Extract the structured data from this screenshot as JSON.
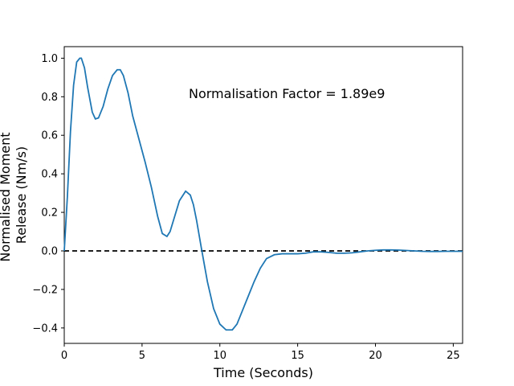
{
  "chart_data": {
    "type": "line",
    "xlabel": "Time (Seconds)",
    "ylabel_lines": [
      "Normalised Moment",
      "Release (Nm/s)"
    ],
    "annotation": "Normalisation Factor = 1.89e9",
    "xlim": [
      0,
      25.6
    ],
    "ylim": [
      -0.48,
      1.06
    ],
    "xticks": [
      0,
      5,
      10,
      15,
      20,
      25
    ],
    "yticks": [
      -0.4,
      -0.2,
      0.0,
      0.2,
      0.4,
      0.6,
      0.8,
      1.0
    ],
    "xtick_labels": [
      "0",
      "5",
      "10",
      "15",
      "20",
      "25"
    ],
    "ytick_labels": [
      "−0.4",
      "−0.2",
      "0.0",
      "0.2",
      "0.4",
      "0.6",
      "0.8",
      "1.0"
    ],
    "grid": false,
    "reference_line": {
      "y": 0.0,
      "style": "dashed",
      "color": "#000000"
    },
    "series": [
      {
        "color": "#1f77b4",
        "x": [
          0,
          0.2,
          0.4,
          0.6,
          0.8,
          1.0,
          1.1,
          1.3,
          1.5,
          1.8,
          2.0,
          2.2,
          2.5,
          2.8,
          3.1,
          3.4,
          3.6,
          3.8,
          4.1,
          4.4,
          4.8,
          5.2,
          5.6,
          6.0,
          6.3,
          6.6,
          6.8,
          7.1,
          7.4,
          7.8,
          8.1,
          8.3,
          8.5,
          8.8,
          9.2,
          9.6,
          10.0,
          10.4,
          10.8,
          11.1,
          11.4,
          11.8,
          12.2,
          12.6,
          13.0,
          13.5,
          14.0,
          14.5,
          15.0,
          15.5,
          16.0,
          16.5,
          17.0,
          17.5,
          18.0,
          18.5,
          19.0,
          19.5,
          20.0,
          20.5,
          21.0,
          21.5,
          22.0,
          22.5,
          23.0,
          23.5,
          24.0,
          24.5,
          25.0,
          25.6
        ],
        "y": [
          0.0,
          0.28,
          0.62,
          0.86,
          0.98,
          1.0,
          1.0,
          0.95,
          0.85,
          0.72,
          0.685,
          0.69,
          0.75,
          0.84,
          0.91,
          0.94,
          0.94,
          0.91,
          0.82,
          0.7,
          0.58,
          0.46,
          0.33,
          0.18,
          0.09,
          0.075,
          0.1,
          0.18,
          0.26,
          0.31,
          0.29,
          0.24,
          0.16,
          0.02,
          -0.16,
          -0.3,
          -0.38,
          -0.41,
          -0.41,
          -0.38,
          -0.32,
          -0.24,
          -0.16,
          -0.09,
          -0.04,
          -0.02,
          -0.015,
          -0.015,
          -0.015,
          -0.012,
          -0.005,
          -0.005,
          -0.008,
          -0.012,
          -0.012,
          -0.01,
          -0.005,
          0.0,
          0.003,
          0.005,
          0.005,
          0.004,
          0.002,
          0.0,
          -0.002,
          -0.003,
          -0.003,
          -0.002,
          -0.002,
          -0.002
        ]
      }
    ]
  }
}
